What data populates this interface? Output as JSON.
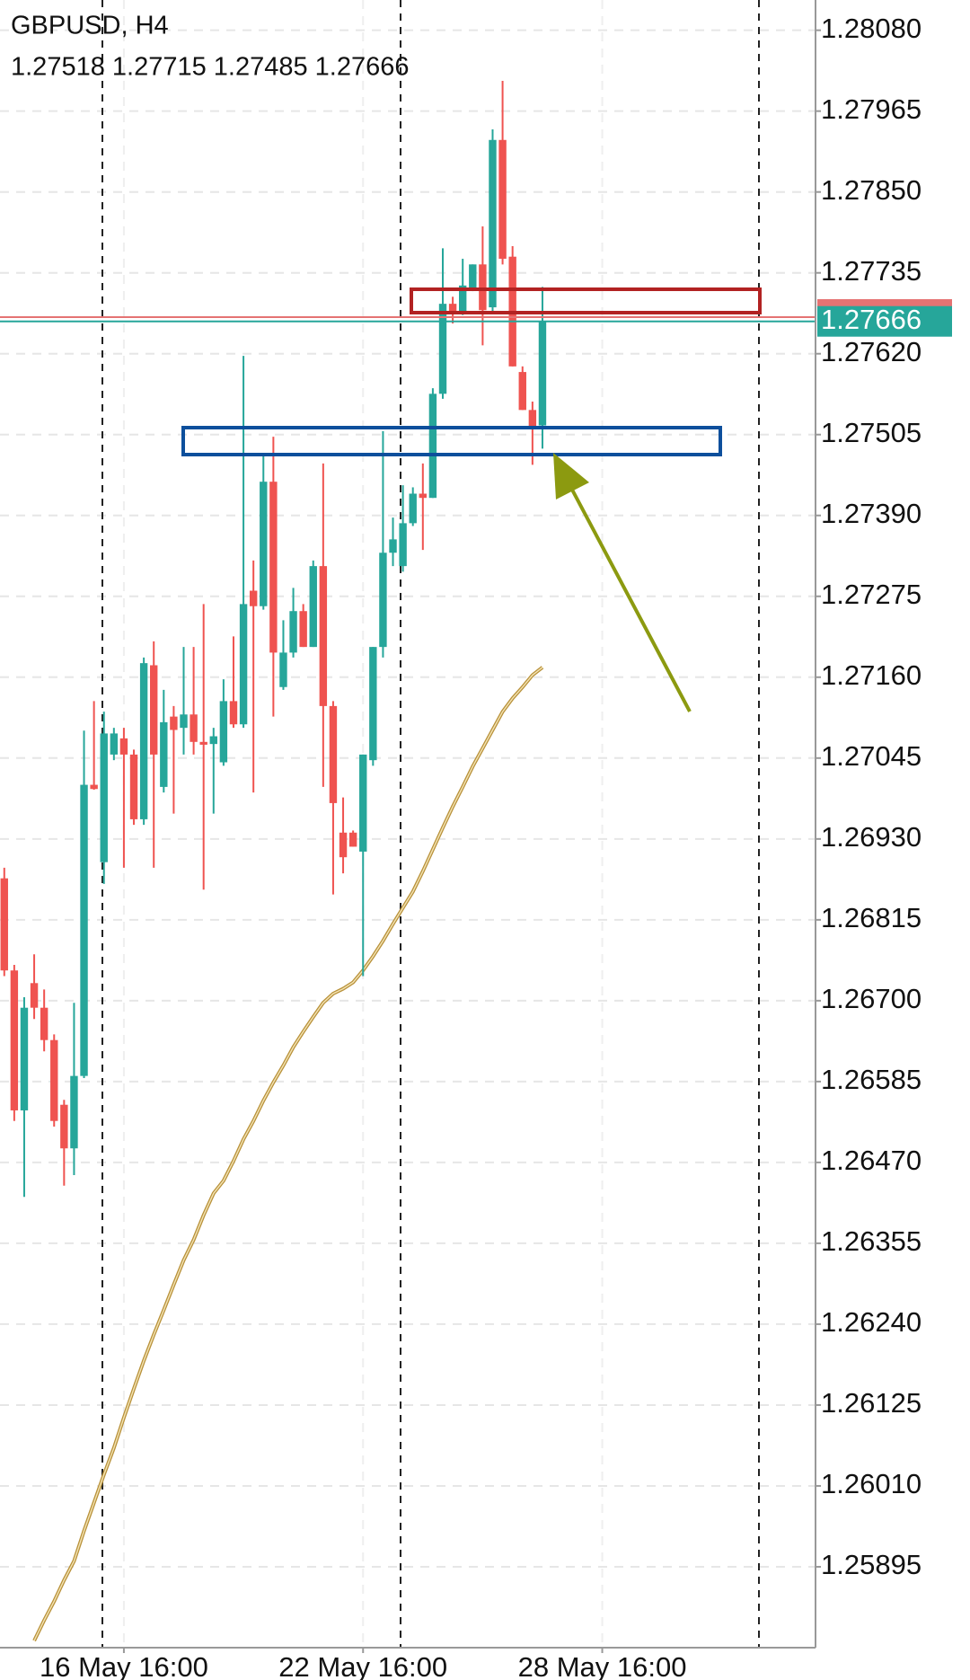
{
  "chart_data": {
    "type": "candlestick",
    "title": "GBPUSD, H4",
    "subtitle": "1.27518 1.27715 1.27485 1.27666",
    "up_color": "#26a69a",
    "down_color": "#ef5350",
    "open": [
      1.26874,
      1.26743,
      1.26544,
      1.26725,
      1.2669,
      1.26644,
      1.26552,
      1.2649,
      1.26593,
      1.27007,
      1.26897,
      1.2705,
      1.27073,
      1.2705,
      1.26958,
      1.27177,
      1.27004,
      1.27104,
      1.27088,
      1.27107,
      1.27068,
      1.27065,
      1.27039,
      1.27126,
      1.27093,
      1.27283,
      1.27261,
      1.27438,
      1.27146,
      1.27195,
      1.27254,
      1.27203,
      1.27318,
      1.27119,
      1.26939,
      1.26939,
      1.26912,
      1.27042,
      1.27203,
      1.27337,
      1.27318,
      1.27379,
      1.27421,
      1.27415,
      1.27563,
      1.27691,
      1.27678,
      1.27712,
      1.27747,
      1.27686,
      1.27924,
      1.27758,
      1.27594,
      1.2754,
      1.27518
    ],
    "high": [
      1.26889,
      1.26751,
      1.26705,
      1.26766,
      1.26716,
      1.26652,
      1.26559,
      1.26697,
      1.27084,
      1.27126,
      1.27111,
      1.27088,
      1.27088,
      1.27057,
      1.27188,
      1.27211,
      1.27142,
      1.27119,
      1.27203,
      1.27203,
      1.27264,
      1.27088,
      1.27157,
      1.27218,
      1.27617,
      1.27326,
      1.27479,
      1.27502,
      1.27241,
      1.27287,
      1.27264,
      1.27326,
      1.27464,
      1.27126,
      1.26989,
      1.26942,
      1.2705,
      1.27203,
      1.2751,
      1.27387,
      1.27433,
      1.2743,
      1.27464,
      1.27571,
      1.2777,
      1.27701,
      1.27755,
      1.27747,
      1.27801,
      1.27939,
      1.28008,
      1.27773,
      1.27602,
      1.27552,
      1.27715
    ],
    "low": [
      1.26735,
      1.26529,
      1.26421,
      1.26674,
      1.26628,
      1.26521,
      1.26437,
      1.26452,
      1.2659,
      1.27,
      1.26866,
      1.27042,
      1.26889,
      1.2695,
      1.2695,
      1.26889,
      1.26996,
      1.26966,
      1.2705,
      1.2705,
      1.26858,
      1.26966,
      1.27034,
      1.27088,
      1.27088,
      1.26996,
      1.27256,
      1.27104,
      1.27142,
      1.27188,
      1.27203,
      1.27203,
      1.27004,
      1.26851,
      1.26881,
      1.26919,
      1.26735,
      1.27034,
      1.27188,
      1.27318,
      1.2731,
      1.27375,
      1.27341,
      1.27415,
      1.27556,
      1.27663,
      1.27675,
      1.27709,
      1.27632,
      1.27678,
      1.27747,
      1.27602,
      1.2754,
      1.27462,
      1.27485
    ],
    "close": [
      1.26743,
      1.26544,
      1.2669,
      1.2669,
      1.26644,
      1.26529,
      1.2649,
      1.26593,
      1.27007,
      1.27001,
      1.2708,
      1.2708,
      1.2705,
      1.26958,
      1.2718,
      1.2705,
      1.27096,
      1.27085,
      1.27107,
      1.27068,
      1.27064,
      1.27076,
      1.27126,
      1.27093,
      1.27264,
      1.27261,
      1.27438,
      1.27195,
      1.27195,
      1.27254,
      1.27203,
      1.27318,
      1.27119,
      1.26981,
      1.26904,
      1.26919,
      1.2705,
      1.27203,
      1.27337,
      1.27356,
      1.27379,
      1.27421,
      1.27415,
      1.27563,
      1.27691,
      1.27678,
      1.27717,
      1.27747,
      1.27682,
      1.27924,
      1.27755,
      1.27602,
      1.2754,
      1.27517,
      1.27666
    ],
    "ma": {
      "color": "#b8913a",
      "values": [
        null,
        null,
        null,
        1.2579,
        1.25819,
        1.25846,
        1.25876,
        1.25903,
        1.25946,
        1.25986,
        1.26026,
        1.26064,
        1.26107,
        1.26148,
        1.26188,
        1.26225,
        1.2626,
        1.26296,
        1.26331,
        1.2636,
        1.26395,
        1.26426,
        1.26444,
        1.26472,
        1.26503,
        1.26529,
        1.26558,
        1.26584,
        1.26608,
        1.26634,
        1.26656,
        1.26677,
        1.26697,
        1.2671,
        1.26717,
        1.26726,
        1.26743,
        1.26763,
        1.26785,
        1.26809,
        1.26832,
        1.26855,
        1.26884,
        1.26915,
        1.26946,
        1.26976,
        1.27004,
        1.27033,
        1.27059,
        1.27085,
        1.27111,
        1.2713,
        1.27146,
        1.27163,
        1.27174
      ]
    },
    "last_price": 1.27666,
    "last_price_color": "#26a69a",
    "ylim": [
      1.2578,
      1.28123
    ],
    "yticks": [
      {
        "value": 1.2808,
        "label": "1.28080"
      },
      1.27965,
      {
        "value": 1.2785,
        "label": "1.27850"
      },
      1.27735,
      {
        "value": 1.2762,
        "label": "1.27620"
      },
      1.27505,
      {
        "value": 1.2739,
        "label": "1.27390"
      },
      1.27275,
      {
        "value": 1.2716,
        "label": "1.27160"
      },
      1.27045,
      {
        "value": 1.2693,
        "label": "1.26930"
      },
      1.26815,
      {
        "value": 1.267,
        "label": "1.26700"
      },
      1.26585,
      {
        "value": 1.2647,
        "label": "1.26470"
      },
      1.26355,
      {
        "value": 1.2624,
        "label": "1.26240"
      },
      1.26125,
      {
        "value": 1.2601,
        "label": "1.26010"
      },
      1.25895
    ],
    "xlim": [
      -0.43,
      81.4
    ],
    "xticks": [
      {
        "value": 12,
        "label": "16 May 16:00"
      },
      {
        "value": 36,
        "label": "22 May 16:00"
      },
      {
        "value": 60,
        "label": "28 May 16:00"
      }
    ],
    "grid": true
  }
}
